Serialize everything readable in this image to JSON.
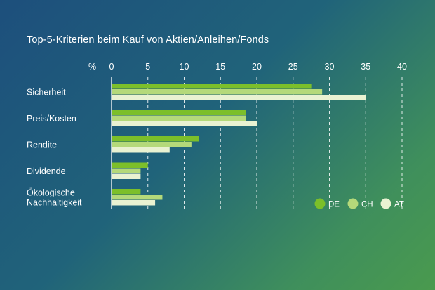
{
  "chart_data": {
    "type": "bar",
    "orientation": "horizontal",
    "title": "Top-5-Kriterien beim Kauf von Aktien/Anleihen/Fonds",
    "unit_label": "%",
    "xlim": [
      0,
      40
    ],
    "xticks": [
      0,
      5,
      10,
      15,
      20,
      25,
      30,
      35,
      40
    ],
    "grid": true,
    "legend_position": "bottom-right",
    "categories": [
      [
        "Sicherheit"
      ],
      [
        "Preis/Kosten"
      ],
      [
        "Rendite"
      ],
      [
        "Dividende"
      ],
      [
        "Ökologische",
        "Nachhaltigkeit"
      ]
    ],
    "series": [
      {
        "name": "DE",
        "color": "#7cbf2a",
        "values": [
          27.5,
          18.5,
          12,
          5,
          4
        ]
      },
      {
        "name": "CH",
        "color": "#b4d97a",
        "values": [
          29,
          18.5,
          11,
          4,
          7
        ]
      },
      {
        "name": "AT",
        "color": "#e9f2d2",
        "values": [
          35,
          20,
          8,
          4,
          6
        ]
      }
    ]
  }
}
